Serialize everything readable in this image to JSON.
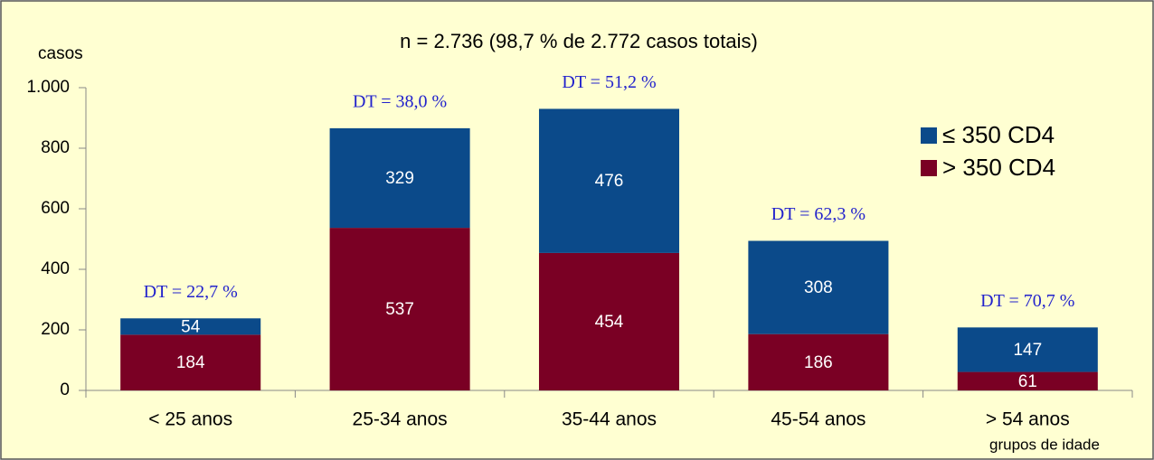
{
  "chart_data": {
    "type": "stacked_bar",
    "title": "n = 2.736 (98,7 % de 2.772 casos totais)",
    "y_label": "casos",
    "x_label": "grupos de idade",
    "categories": [
      "< 25 anos",
      "25-34 anos",
      "35-44 anos",
      "45-54 anos",
      "> 54 anos"
    ],
    "series": [
      {
        "name": "> 350 CD4",
        "color": "#7a0024",
        "values": [
          184,
          537,
          454,
          186,
          61
        ]
      },
      {
        "name": "≤ 350 CD4",
        "color": "#0b4a8a",
        "values": [
          54,
          329,
          476,
          308,
          147
        ]
      }
    ],
    "annotations": [
      "DT = 22,7  %",
      "DT = 38,0  %",
      "DT = 51,2  %",
      "DT = 62,3  %",
      "DT = 70,7  %"
    ],
    "ylim": [
      0,
      1000
    ],
    "yticks": [
      0,
      200,
      400,
      600,
      800,
      {
        "value": 1000,
        "label": "1.000"
      }
    ],
    "legend": "upper right",
    "grid": false
  }
}
